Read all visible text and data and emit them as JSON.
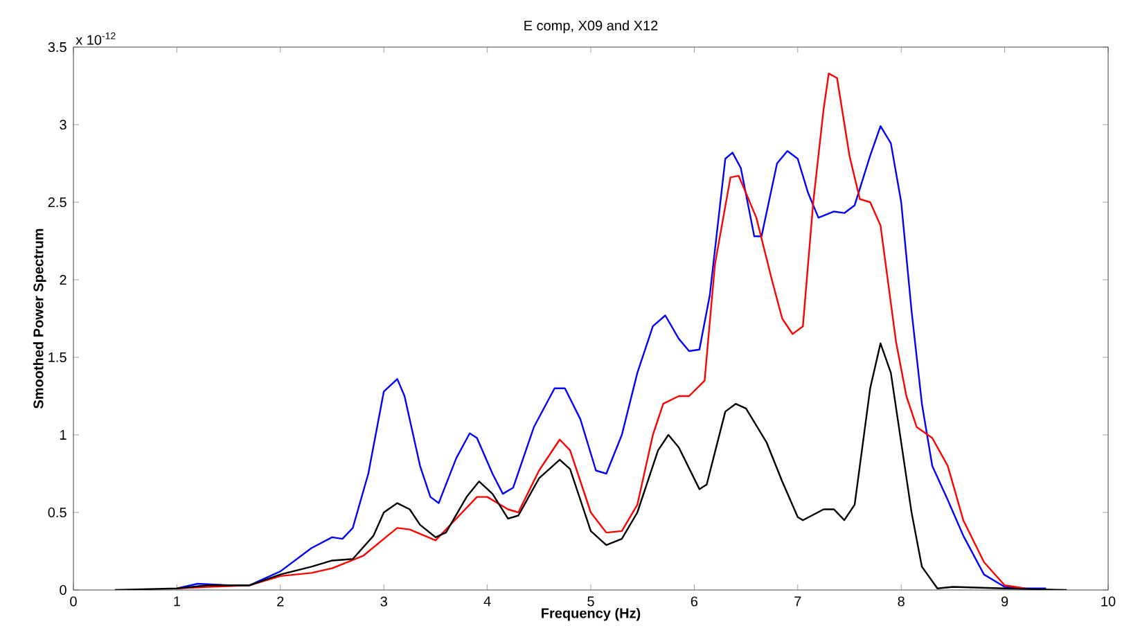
{
  "chart_data": {
    "type": "line",
    "title": "E comp, X09 and X12",
    "xlabel": "Frequency (Hz)",
    "ylabel": "Smoothed Power Spectrum",
    "annotations": [
      "x 10$^{-12}$"
    ],
    "xlim": [
      0,
      10
    ],
    "ylim": [
      0,
      3.5
    ],
    "xticks": [
      0,
      1,
      2,
      3,
      4,
      5,
      6,
      7,
      8,
      9,
      10
    ],
    "yticks": [
      0,
      0.5,
      1,
      1.5,
      2,
      2.5,
      3,
      3.5
    ],
    "series": [
      {
        "color": "#0000ff",
        "x": [
          1,
          1.2,
          1.5,
          1.7,
          2,
          2.3,
          2.5,
          2.6,
          2.7,
          2.85,
          3.0,
          3.13,
          3.2,
          3.35,
          3.45,
          3.53,
          3.7,
          3.83,
          3.9,
          4.05,
          4.15,
          4.25,
          4.45,
          4.65,
          4.75,
          4.9,
          5.05,
          5.15,
          5.3,
          5.45,
          5.6,
          5.72,
          5.85,
          5.95,
          6.05,
          6.15,
          6.3,
          6.37,
          6.45,
          6.58,
          6.65,
          6.8,
          6.9,
          7.0,
          7.1,
          7.2,
          7.35,
          7.45,
          7.55,
          7.7,
          7.8,
          7.9,
          8.0,
          8.1,
          8.2,
          8.3,
          8.45,
          8.6,
          8.8,
          9.0,
          9.2,
          9.4
        ],
        "values": [
          0.01,
          0.04,
          0.03,
          0.03,
          0.12,
          0.27,
          0.34,
          0.33,
          0.4,
          0.75,
          1.28,
          1.36,
          1.25,
          0.8,
          0.6,
          0.56,
          0.85,
          1.01,
          0.98,
          0.75,
          0.62,
          0.66,
          1.05,
          1.3,
          1.3,
          1.1,
          0.77,
          0.75,
          1.0,
          1.4,
          1.7,
          1.77,
          1.62,
          1.54,
          1.55,
          1.9,
          2.78,
          2.82,
          2.72,
          2.28,
          2.28,
          2.75,
          2.83,
          2.78,
          2.56,
          2.4,
          2.44,
          2.43,
          2.48,
          2.8,
          2.99,
          2.88,
          2.5,
          1.8,
          1.2,
          0.8,
          0.58,
          0.35,
          0.1,
          0.02,
          0.01,
          0.01
        ]
      },
      {
        "color": "#ff0000",
        "x": [
          1,
          1.3,
          1.7,
          2,
          2.3,
          2.5,
          2.8,
          3.0,
          3.13,
          3.25,
          3.5,
          3.7,
          3.9,
          4.0,
          4.2,
          4.3,
          4.5,
          4.7,
          4.8,
          5.0,
          5.15,
          5.3,
          5.45,
          5.6,
          5.7,
          5.85,
          5.95,
          6.1,
          6.2,
          6.35,
          6.43,
          6.6,
          6.75,
          6.85,
          6.95,
          7.05,
          7.15,
          7.25,
          7.3,
          7.38,
          7.5,
          7.6,
          7.7,
          7.8,
          7.95,
          8.05,
          8.15,
          8.3,
          8.45,
          8.6,
          8.8,
          9.0,
          9.2
        ],
        "values": [
          0.01,
          0.02,
          0.03,
          0.09,
          0.11,
          0.14,
          0.22,
          0.33,
          0.4,
          0.39,
          0.32,
          0.46,
          0.6,
          0.6,
          0.52,
          0.5,
          0.77,
          0.97,
          0.9,
          0.5,
          0.37,
          0.38,
          0.55,
          1.0,
          1.2,
          1.25,
          1.25,
          1.35,
          2.1,
          2.66,
          2.67,
          2.4,
          2.0,
          1.75,
          1.65,
          1.7,
          2.5,
          3.1,
          3.33,
          3.3,
          2.8,
          2.52,
          2.5,
          2.35,
          1.6,
          1.25,
          1.05,
          0.98,
          0.8,
          0.45,
          0.18,
          0.03,
          0.01
        ]
      },
      {
        "color": "#000000",
        "x": [
          0.4,
          1,
          1.3,
          1.7,
          2,
          2.3,
          2.5,
          2.7,
          2.9,
          3.0,
          3.13,
          3.25,
          3.35,
          3.5,
          3.6,
          3.8,
          3.92,
          4.05,
          4.2,
          4.3,
          4.5,
          4.7,
          4.8,
          5.0,
          5.15,
          5.3,
          5.45,
          5.65,
          5.75,
          5.85,
          6.05,
          6.12,
          6.3,
          6.4,
          6.5,
          6.7,
          6.85,
          7.0,
          7.05,
          7.25,
          7.35,
          7.45,
          7.55,
          7.7,
          7.8,
          7.9,
          8.0,
          8.1,
          8.2,
          8.35,
          8.5,
          9.0,
          9.6
        ],
        "values": [
          0,
          0.01,
          0.03,
          0.03,
          0.1,
          0.15,
          0.19,
          0.2,
          0.35,
          0.5,
          0.56,
          0.52,
          0.42,
          0.34,
          0.37,
          0.6,
          0.7,
          0.62,
          0.46,
          0.48,
          0.72,
          0.84,
          0.78,
          0.38,
          0.29,
          0.33,
          0.5,
          0.9,
          1.0,
          0.92,
          0.65,
          0.68,
          1.15,
          1.2,
          1.17,
          0.95,
          0.7,
          0.47,
          0.45,
          0.52,
          0.52,
          0.45,
          0.55,
          1.3,
          1.59,
          1.4,
          0.95,
          0.5,
          0.15,
          0.01,
          0.02,
          0.01,
          0
        ]
      }
    ]
  }
}
